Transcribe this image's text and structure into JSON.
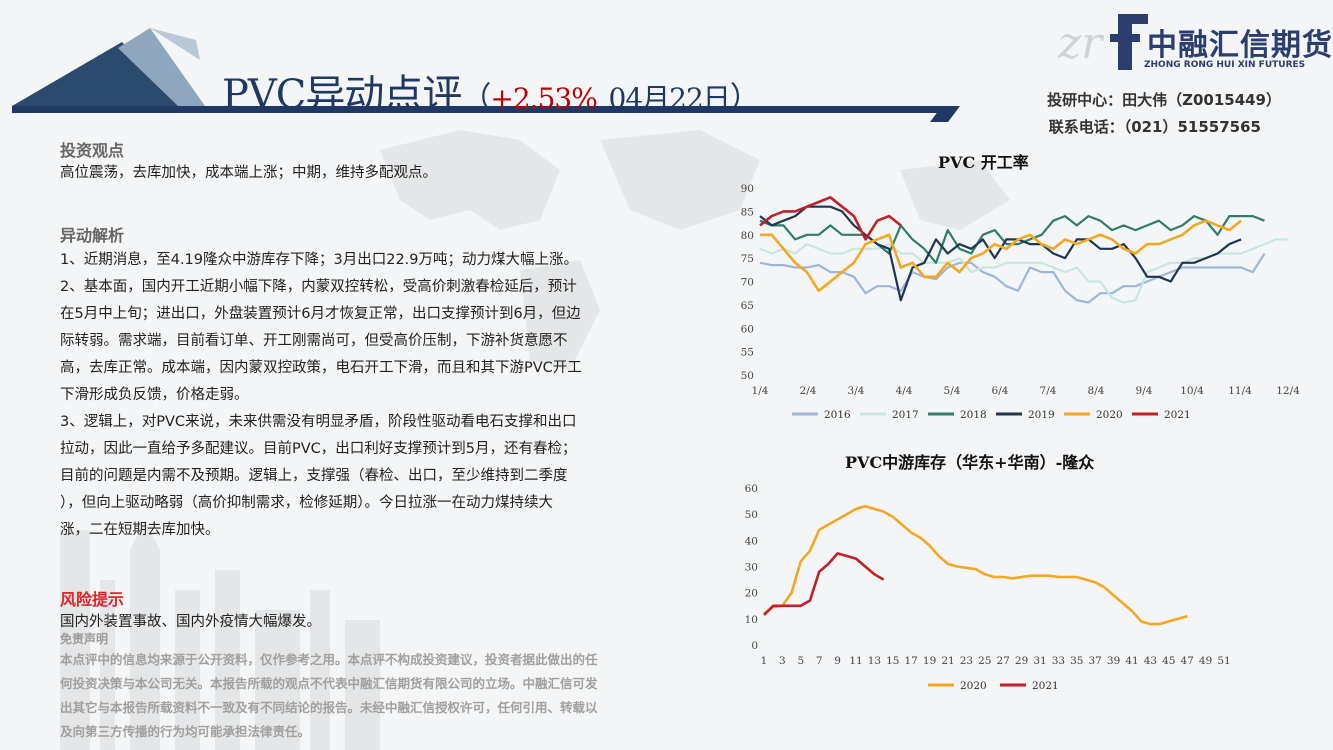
{
  "header": {
    "title_main": "PVC异动点评",
    "paren_open": "（",
    "change": "+2.53%",
    "date": "04月22日",
    "paren_close": "）"
  },
  "logo": {
    "name": "中融汇信期货",
    "subtitle": "ZHONG RONG HUI XIN FUTURES"
  },
  "contact": {
    "line1": "投研中心：田大伟（Z0015449）",
    "line2": "联系电话：（021）51557565"
  },
  "sections": {
    "view_heading": "投资观点",
    "view_text": "高位震荡，去库加快，成本端上涨；中期，维持多配观点。",
    "analysis_heading": "异动解析",
    "analysis_lines": [
      "1、近期消息，至4.19隆众中游库存下降；3月出口22.9万吨；动力煤大幅上涨。",
      "2、基本面，国内开工近期小幅下降，内蒙双控转松，受高价刺激春检延后，预计",
      "在5月中上旬；进出口，外盘装置预计6月才恢复正常，出口支撑预计到6月，但边",
      "际转弱。需求端，目前看订单、开工刚需尚可，但受高价压制，下游补货意愿不",
      "高，去库正常。成本端，因内蒙双控政策，电石开工下滑，而且和其下游PVC开工",
      "下滑形成负反馈，价格走弱。",
      "3、逻辑上，对PVC来说，未来供需没有明显矛盾，阶段性驱动看电石支撑和出口",
      "拉动，因此一直给予多配建议。目前PVC，出口利好支撑预计到5月，还有春检；",
      "目前的问题是内需不及预期。逻辑上，支撑强（春检、出口，至少维持到二季度",
      "），但向上驱动略弱（高价抑制需求，检修延期）。今日拉涨一在动力煤持续大",
      "涨，二在短期去库加快。"
    ],
    "risk_heading": "风险提示",
    "risk_text": "国内外装置事故、国内外疫情大幅爆发。",
    "disclaimer_title": "免责声明",
    "disclaimer_lines": [
      "本点评中的信息均来源于公开资料，仅作参考之用。本点评不构成投资建议，投资者据此做出的任",
      "何投资决策与本公司无关。本报告所载的观点不代表中融汇信期货有限公司的立场。中融汇信可发",
      "出其它与本报告所载资料不一致及有不同结论的报告。未经中融汇信授权许可，任何引用、转载以",
      "及向第三方传播的行为均可能承担法律责任。"
    ]
  },
  "colors": {
    "navy": "#1f3864",
    "risk_red": "#e0242a",
    "s2016": "#9db7da",
    "s2017": "#c6e6e0",
    "s2018": "#2e7d66",
    "s2019": "#1f3550",
    "s2020": "#f5a623",
    "s2021": "#c0202a"
  },
  "chart_data": [
    {
      "type": "line",
      "title": "PVC 开工率",
      "ylim": [
        50,
        90
      ],
      "yticks": [
        "50",
        "55",
        "60",
        "65",
        "70",
        "75",
        "80",
        "85",
        "90"
      ],
      "xticks": [
        "1/4",
        "2/4",
        "3/4",
        "4/4",
        "5/4",
        "6/4",
        "7/4",
        "8/4",
        "9/4",
        "10/4",
        "11/4",
        "12/4"
      ],
      "legend_position": "bottom",
      "series": [
        {
          "name": "2016",
          "values": [
            74,
            73.5,
            73.5,
            73,
            73,
            73.5,
            72,
            72,
            71,
            67.5,
            69,
            69,
            68,
            72,
            71,
            70.5,
            73,
            74,
            74,
            72,
            71,
            69,
            68,
            73,
            72,
            72,
            68,
            66,
            65.5,
            67.5,
            67.5,
            69,
            69,
            70,
            71,
            72,
            73,
            73,
            73,
            73,
            73,
            73,
            72,
            76
          ]
        },
        {
          "name": "2017",
          "values": [
            77,
            76,
            77,
            76,
            78,
            77,
            76,
            76,
            77,
            77,
            77,
            78,
            76,
            76,
            74,
            74,
            74,
            75,
            72,
            73,
            73,
            74,
            74,
            74,
            74,
            73,
            72,
            73,
            70,
            70,
            66.5,
            65.5,
            66,
            72,
            73,
            74,
            74,
            75,
            75,
            76,
            76,
            76,
            77,
            78,
            79,
            79
          ]
        },
        {
          "name": "2018",
          "values": [
            83,
            82,
            82,
            79,
            80,
            80,
            82,
            80,
            80,
            80,
            78,
            76,
            82,
            79,
            77,
            74,
            81,
            77,
            76,
            80,
            81,
            78,
            78,
            79,
            80,
            83,
            84,
            82,
            84,
            83,
            81,
            82,
            81,
            82,
            83,
            81,
            82,
            84,
            83,
            80,
            84,
            84,
            84,
            83
          ]
        },
        {
          "name": "2019",
          "values": [
            84,
            82,
            83,
            84,
            86,
            86,
            86,
            85,
            82,
            80,
            78,
            77,
            66,
            73,
            74,
            79,
            76,
            78,
            77,
            79,
            75,
            79,
            79,
            78,
            78,
            76,
            75,
            79,
            79,
            77,
            77,
            78,
            75,
            71,
            71,
            70,
            74,
            74,
            75,
            76,
            78,
            79
          ]
        },
        {
          "name": "2020",
          "values": [
            80,
            80,
            77,
            74,
            72,
            68,
            70,
            72,
            74,
            78,
            79,
            80,
            73,
            74,
            71,
            71,
            74,
            72,
            75,
            76,
            78,
            77,
            79,
            80,
            78,
            77,
            79,
            78,
            79,
            80,
            79,
            77,
            76,
            78,
            78,
            79,
            80,
            82,
            83,
            82,
            81,
            83
          ]
        },
        {
          "name": "2021",
          "values": [
            82,
            84,
            85,
            85,
            86,
            87,
            88,
            86,
            84,
            79,
            83,
            84,
            82
          ]
        }
      ]
    },
    {
      "type": "line",
      "title": "PVC中游库存（华东+华南）-隆众",
      "ylim": [
        0,
        60
      ],
      "yticks": [
        "0",
        "10",
        "20",
        "30",
        "40",
        "50",
        "60"
      ],
      "xticks": [
        "1",
        "3",
        "5",
        "7",
        "9",
        "11",
        "13",
        "15",
        "17",
        "19",
        "21",
        "23",
        "25",
        "27",
        "29",
        "31",
        "33",
        "35",
        "37",
        "39",
        "41",
        "43",
        "45",
        "47",
        "49",
        "51"
      ],
      "legend_position": "bottom",
      "series": [
        {
          "name": "2020",
          "values": [
            12,
            14.5,
            15,
            20,
            32,
            36,
            44,
            46,
            48,
            50,
            52,
            53,
            52,
            51,
            49,
            46,
            43,
            41,
            38,
            34,
            31,
            30,
            29.5,
            29,
            27,
            26,
            26,
            25.5,
            26,
            26.5,
            26.5,
            26.5,
            26,
            26,
            26,
            25,
            24,
            22,
            19,
            16,
            13,
            9,
            8,
            8,
            9,
            10,
            11
          ]
        },
        {
          "name": "2021",
          "values": [
            11.5,
            15,
            15,
            15,
            15,
            17,
            28,
            31,
            35,
            34,
            33,
            30,
            27,
            25
          ]
        }
      ]
    }
  ]
}
